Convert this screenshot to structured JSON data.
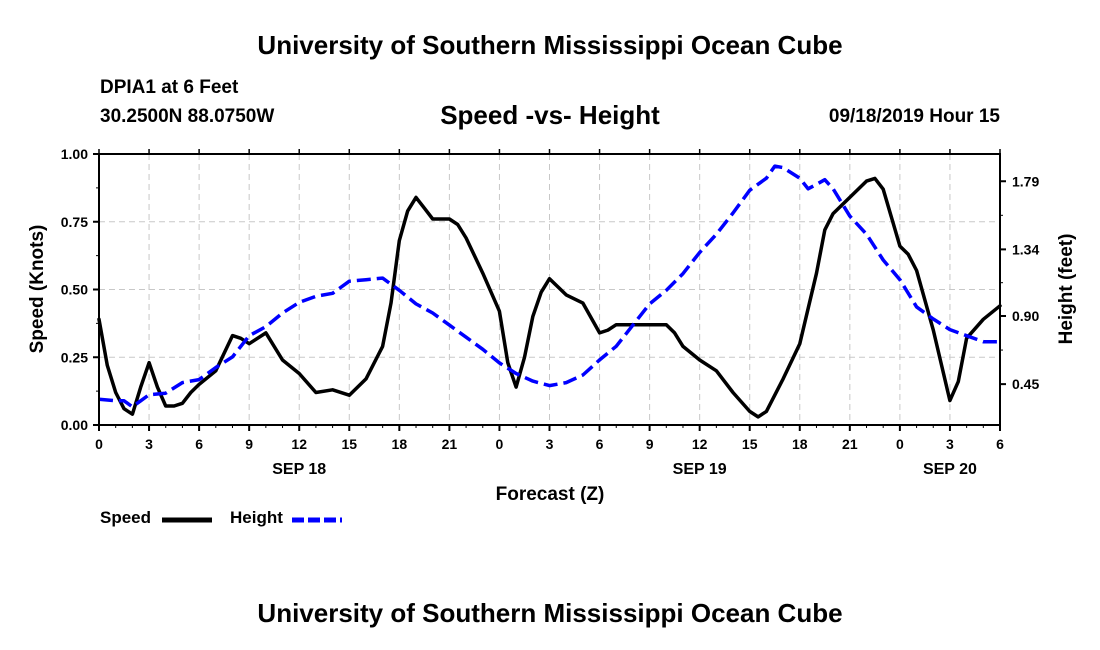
{
  "header": {
    "main_title": "University of Southern Mississippi Ocean Cube",
    "station": "DPIA1 at 6 Feet",
    "coords": "30.2500N 88.0750W",
    "subtitle": "Speed -vs- Height",
    "datetime": "09/18/2019 Hour 15"
  },
  "footer": {
    "title": "University of Southern Mississippi Ocean Cube"
  },
  "legend": {
    "speed_label": "Speed",
    "height_label": "Height"
  },
  "chart_data": {
    "type": "line",
    "title": "Speed -vs- Height",
    "xlabel": "Forecast (Z)",
    "ylabel": "Speed (Knots)",
    "y2label": "Height (feet)",
    "xlim": [
      0,
      54
    ],
    "ylim": [
      0,
      1.0
    ],
    "y2lim": [
      0.18,
      1.97
    ],
    "x_tick_labels": [
      "0",
      "3",
      "6",
      "9",
      "12",
      "15",
      "18",
      "21",
      "0",
      "3",
      "6",
      "9",
      "12",
      "15",
      "18",
      "21",
      "0",
      "3",
      "6"
    ],
    "day_labels": [
      {
        "label": "SEP 18",
        "x": 12
      },
      {
        "label": "SEP 19",
        "x": 36
      },
      {
        "label": "SEP 20",
        "x": 51
      }
    ],
    "y_ticks": [
      "0.00",
      "0.25",
      "0.50",
      "0.75",
      "1.00"
    ],
    "y2_ticks": [
      "0.45",
      "0.90",
      "1.34",
      "1.79"
    ],
    "grid": true,
    "series": [
      {
        "name": "Speed",
        "axis": "left",
        "color": "#000000",
        "style": "solid",
        "points": [
          [
            0,
            0.39
          ],
          [
            0.5,
            0.22
          ],
          [
            1,
            0.12
          ],
          [
            1.5,
            0.06
          ],
          [
            2,
            0.04
          ],
          [
            2.5,
            0.14
          ],
          [
            3,
            0.23
          ],
          [
            3.5,
            0.14
          ],
          [
            4,
            0.07
          ],
          [
            4.5,
            0.07
          ],
          [
            5,
            0.08
          ],
          [
            5.5,
            0.12
          ],
          [
            6,
            0.15
          ],
          [
            7,
            0.2
          ],
          [
            8,
            0.33
          ],
          [
            8.5,
            0.32
          ],
          [
            9,
            0.3
          ],
          [
            10,
            0.34
          ],
          [
            11,
            0.24
          ],
          [
            12,
            0.19
          ],
          [
            13,
            0.12
          ],
          [
            14,
            0.13
          ],
          [
            15,
            0.11
          ],
          [
            16,
            0.17
          ],
          [
            17,
            0.29
          ],
          [
            17.5,
            0.45
          ],
          [
            18,
            0.68
          ],
          [
            18.5,
            0.79
          ],
          [
            19,
            0.84
          ],
          [
            19.5,
            0.8
          ],
          [
            20,
            0.76
          ],
          [
            21,
            0.76
          ],
          [
            21.5,
            0.74
          ],
          [
            22,
            0.69
          ],
          [
            23,
            0.56
          ],
          [
            24,
            0.42
          ],
          [
            24.5,
            0.23
          ],
          [
            25,
            0.14
          ],
          [
            25.5,
            0.25
          ],
          [
            26,
            0.4
          ],
          [
            26.5,
            0.49
          ],
          [
            27,
            0.54
          ],
          [
            27.5,
            0.51
          ],
          [
            28,
            0.48
          ],
          [
            29,
            0.45
          ],
          [
            30,
            0.34
          ],
          [
            30.5,
            0.35
          ],
          [
            31,
            0.37
          ],
          [
            32,
            0.37
          ],
          [
            33,
            0.37
          ],
          [
            34,
            0.37
          ],
          [
            34.5,
            0.34
          ],
          [
            35,
            0.29
          ],
          [
            36,
            0.24
          ],
          [
            37,
            0.2
          ],
          [
            38,
            0.12
          ],
          [
            39,
            0.05
          ],
          [
            39.5,
            0.03
          ],
          [
            40,
            0.05
          ],
          [
            41,
            0.17
          ],
          [
            42,
            0.3
          ],
          [
            43,
            0.56
          ],
          [
            43.5,
            0.72
          ],
          [
            44,
            0.78
          ],
          [
            45,
            0.84
          ],
          [
            46,
            0.9
          ],
          [
            46.5,
            0.91
          ],
          [
            47,
            0.87
          ],
          [
            48,
            0.66
          ],
          [
            48.5,
            0.63
          ],
          [
            49,
            0.57
          ],
          [
            50,
            0.35
          ],
          [
            50.5,
            0.22
          ],
          [
            51,
            0.09
          ],
          [
            51.5,
            0.16
          ],
          [
            52,
            0.32
          ],
          [
            53,
            0.39
          ],
          [
            54,
            0.44
          ]
        ]
      },
      {
        "name": "Height",
        "axis": "right",
        "color": "#0000ff",
        "style": "dashed",
        "points": [
          [
            0,
            0.35
          ],
          [
            1,
            0.34
          ],
          [
            1.5,
            0.34
          ],
          [
            2,
            0.3
          ],
          [
            2.5,
            0.34
          ],
          [
            3,
            0.38
          ],
          [
            4,
            0.39
          ],
          [
            5,
            0.46
          ],
          [
            6,
            0.48
          ],
          [
            7,
            0.56
          ],
          [
            8,
            0.63
          ],
          [
            9,
            0.77
          ],
          [
            10,
            0.83
          ],
          [
            11,
            0.92
          ],
          [
            12,
            0.99
          ],
          [
            13,
            1.03
          ],
          [
            14,
            1.05
          ],
          [
            15,
            1.13
          ],
          [
            16,
            1.14
          ],
          [
            17,
            1.15
          ],
          [
            18,
            1.07
          ],
          [
            19,
            0.98
          ],
          [
            20,
            0.92
          ],
          [
            21,
            0.84
          ],
          [
            22,
            0.76
          ],
          [
            23,
            0.68
          ],
          [
            24,
            0.59
          ],
          [
            25,
            0.52
          ],
          [
            26,
            0.47
          ],
          [
            27,
            0.44
          ],
          [
            28,
            0.46
          ],
          [
            29,
            0.51
          ],
          [
            30,
            0.61
          ],
          [
            31,
            0.7
          ],
          [
            32,
            0.84
          ],
          [
            33,
            0.98
          ],
          [
            34,
            1.07
          ],
          [
            35,
            1.18
          ],
          [
            36,
            1.32
          ],
          [
            37,
            1.44
          ],
          [
            38,
            1.58
          ],
          [
            39,
            1.73
          ],
          [
            40,
            1.81
          ],
          [
            40.5,
            1.89
          ],
          [
            41,
            1.88
          ],
          [
            42,
            1.81
          ],
          [
            42.5,
            1.74
          ],
          [
            43,
            1.77
          ],
          [
            43.5,
            1.8
          ],
          [
            44,
            1.74
          ],
          [
            45,
            1.56
          ],
          [
            46,
            1.44
          ],
          [
            47,
            1.27
          ],
          [
            48,
            1.14
          ],
          [
            49,
            0.96
          ],
          [
            50,
            0.88
          ],
          [
            51,
            0.81
          ],
          [
            52,
            0.77
          ],
          [
            53,
            0.73
          ],
          [
            54,
            0.73
          ]
        ]
      }
    ]
  }
}
